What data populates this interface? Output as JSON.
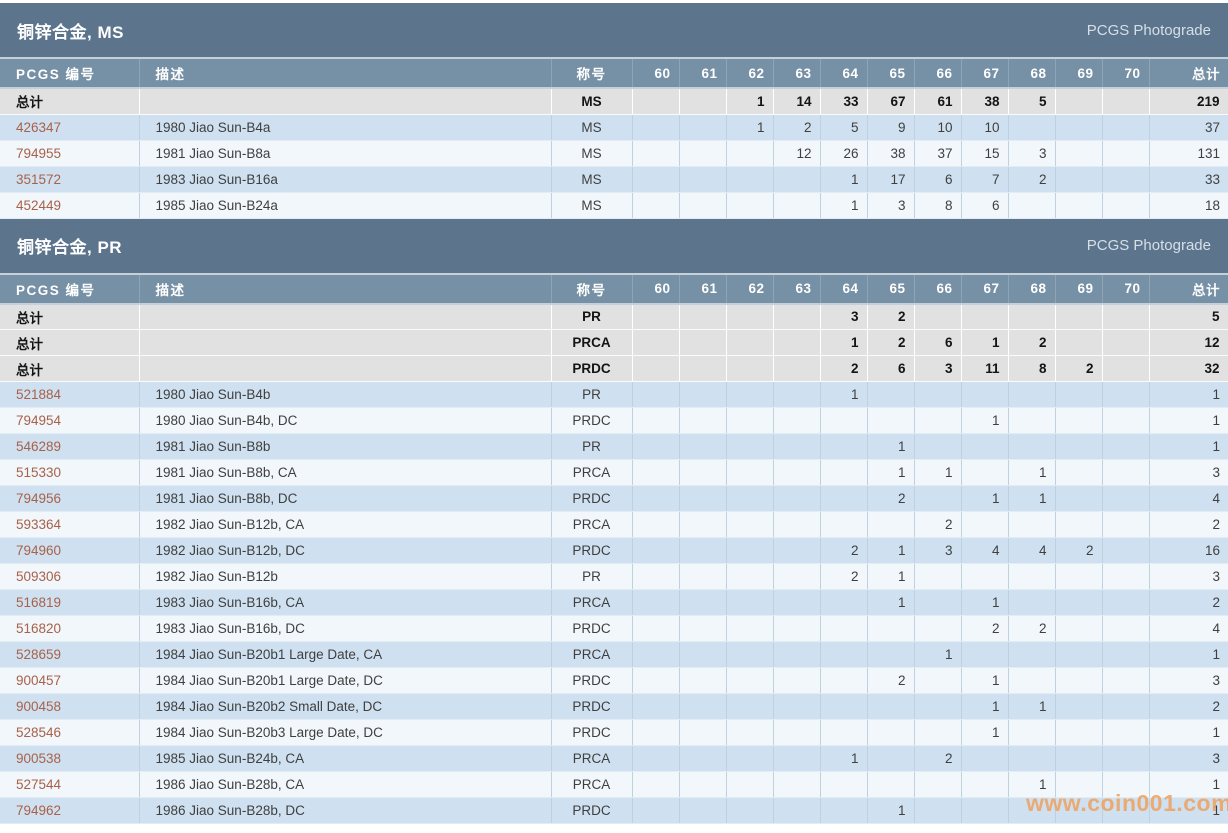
{
  "page": {
    "photograde_label": "PCGS Photograde",
    "watermark": "www.coin001.com"
  },
  "columns": {
    "pcgs": "PCGS 编号",
    "description": "描述",
    "designation": "称号",
    "grades": [
      "60",
      "61",
      "62",
      "63",
      "64",
      "65",
      "66",
      "67",
      "68",
      "69",
      "70"
    ],
    "total": "总计",
    "total_row_label": "总计"
  },
  "tables": [
    {
      "title": "铜锌合金, MS",
      "total_rows": [
        {
          "designation": "MS",
          "grades": [
            "",
            "",
            "1",
            "14",
            "33",
            "67",
            "61",
            "38",
            "5",
            "",
            ""
          ],
          "total": "219"
        }
      ],
      "rows": [
        {
          "pcgs": "426347",
          "desc": "1980 Jiao Sun-B4a",
          "designation": "MS",
          "grades": [
            "",
            "",
            "1",
            "2",
            "5",
            "9",
            "10",
            "10",
            "",
            "",
            ""
          ],
          "total": "37"
        },
        {
          "pcgs": "794955",
          "desc": "1981 Jiao Sun-B8a",
          "designation": "MS",
          "grades": [
            "",
            "",
            "",
            "12",
            "26",
            "38",
            "37",
            "15",
            "3",
            "",
            ""
          ],
          "total": "131"
        },
        {
          "pcgs": "351572",
          "desc": "1983 Jiao Sun-B16a",
          "designation": "MS",
          "grades": [
            "",
            "",
            "",
            "",
            "1",
            "17",
            "6",
            "7",
            "2",
            "",
            ""
          ],
          "total": "33"
        },
        {
          "pcgs": "452449",
          "desc": "1985 Jiao Sun-B24a",
          "designation": "MS",
          "grades": [
            "",
            "",
            "",
            "",
            "1",
            "3",
            "8",
            "6",
            "",
            "",
            ""
          ],
          "total": "18"
        }
      ]
    },
    {
      "title": "铜锌合金, PR",
      "total_rows": [
        {
          "designation": "PR",
          "grades": [
            "",
            "",
            "",
            "",
            "3",
            "2",
            "",
            "",
            "",
            "",
            ""
          ],
          "total": "5"
        },
        {
          "designation": "PRCA",
          "grades": [
            "",
            "",
            "",
            "",
            "1",
            "2",
            "6",
            "1",
            "2",
            "",
            ""
          ],
          "total": "12"
        },
        {
          "designation": "PRDC",
          "grades": [
            "",
            "",
            "",
            "",
            "2",
            "6",
            "3",
            "11",
            "8",
            "2",
            ""
          ],
          "total": "32"
        }
      ],
      "rows": [
        {
          "pcgs": "521884",
          "desc": "1980 Jiao Sun-B4b",
          "designation": "PR",
          "grades": [
            "",
            "",
            "",
            "",
            "1",
            "",
            "",
            "",
            "",
            "",
            ""
          ],
          "total": "1"
        },
        {
          "pcgs": "794954",
          "desc": "1980 Jiao Sun-B4b, DC",
          "designation": "PRDC",
          "grades": [
            "",
            "",
            "",
            "",
            "",
            "",
            "",
            "1",
            "",
            "",
            ""
          ],
          "total": "1"
        },
        {
          "pcgs": "546289",
          "desc": "1981 Jiao Sun-B8b",
          "designation": "PR",
          "grades": [
            "",
            "",
            "",
            "",
            "",
            "1",
            "",
            "",
            "",
            "",
            ""
          ],
          "total": "1"
        },
        {
          "pcgs": "515330",
          "desc": "1981 Jiao Sun-B8b, CA",
          "designation": "PRCA",
          "grades": [
            "",
            "",
            "",
            "",
            "",
            "1",
            "1",
            "",
            "1",
            "",
            ""
          ],
          "total": "3"
        },
        {
          "pcgs": "794956",
          "desc": "1981 Jiao Sun-B8b, DC",
          "designation": "PRDC",
          "grades": [
            "",
            "",
            "",
            "",
            "",
            "2",
            "",
            "1",
            "1",
            "",
            ""
          ],
          "total": "4"
        },
        {
          "pcgs": "593364",
          "desc": "1982 Jiao Sun-B12b, CA",
          "designation": "PRCA",
          "grades": [
            "",
            "",
            "",
            "",
            "",
            "",
            "2",
            "",
            "",
            "",
            ""
          ],
          "total": "2"
        },
        {
          "pcgs": "794960",
          "desc": "1982 Jiao Sun-B12b, DC",
          "designation": "PRDC",
          "grades": [
            "",
            "",
            "",
            "",
            "2",
            "1",
            "3",
            "4",
            "4",
            "2",
            ""
          ],
          "total": "16"
        },
        {
          "pcgs": "509306",
          "desc": "1982 Jiao Sun-B12b",
          "designation": "PR",
          "grades": [
            "",
            "",
            "",
            "",
            "2",
            "1",
            "",
            "",
            "",
            "",
            ""
          ],
          "total": "3"
        },
        {
          "pcgs": "516819",
          "desc": "1983 Jiao Sun-B16b, CA",
          "designation": "PRCA",
          "grades": [
            "",
            "",
            "",
            "",
            "",
            "1",
            "",
            "1",
            "",
            "",
            ""
          ],
          "total": "2"
        },
        {
          "pcgs": "516820",
          "desc": "1983 Jiao Sun-B16b, DC",
          "designation": "PRDC",
          "grades": [
            "",
            "",
            "",
            "",
            "",
            "",
            "",
            "2",
            "2",
            "",
            ""
          ],
          "total": "4"
        },
        {
          "pcgs": "528659",
          "desc": "1984 Jiao Sun-B20b1 Large Date, CA",
          "designation": "PRCA",
          "grades": [
            "",
            "",
            "",
            "",
            "",
            "",
            "1",
            "",
            "",
            "",
            ""
          ],
          "total": "1"
        },
        {
          "pcgs": "900457",
          "desc": "1984 Jiao Sun-B20b1 Large Date, DC",
          "designation": "PRDC",
          "grades": [
            "",
            "",
            "",
            "",
            "",
            "2",
            "",
            "1",
            "",
            "",
            ""
          ],
          "total": "3"
        },
        {
          "pcgs": "900458",
          "desc": "1984 Jiao Sun-B20b2 Small Date, DC",
          "designation": "PRDC",
          "grades": [
            "",
            "",
            "",
            "",
            "",
            "",
            "",
            "1",
            "1",
            "",
            ""
          ],
          "total": "2"
        },
        {
          "pcgs": "528546",
          "desc": "1984 Jiao Sun-B20b3 Large Date, DC",
          "designation": "PRDC",
          "grades": [
            "",
            "",
            "",
            "",
            "",
            "",
            "",
            "1",
            "",
            "",
            ""
          ],
          "total": "1"
        },
        {
          "pcgs": "900538",
          "desc": "1985 Jiao Sun-B24b, CA",
          "designation": "PRCA",
          "grades": [
            "",
            "",
            "",
            "",
            "1",
            "",
            "2",
            "",
            "",
            "",
            ""
          ],
          "total": "3"
        },
        {
          "pcgs": "527544",
          "desc": "1986 Jiao Sun-B28b, CA",
          "designation": "PRCA",
          "grades": [
            "",
            "",
            "",
            "",
            "",
            "",
            "",
            "",
            "1",
            "",
            ""
          ],
          "total": "1"
        },
        {
          "pcgs": "794962",
          "desc": "1986 Jiao Sun-B28b, DC",
          "designation": "PRDC",
          "grades": [
            "",
            "",
            "",
            "",
            "",
            "1",
            "",
            "",
            "",
            "",
            ""
          ],
          "total": "1"
        }
      ]
    }
  ]
}
